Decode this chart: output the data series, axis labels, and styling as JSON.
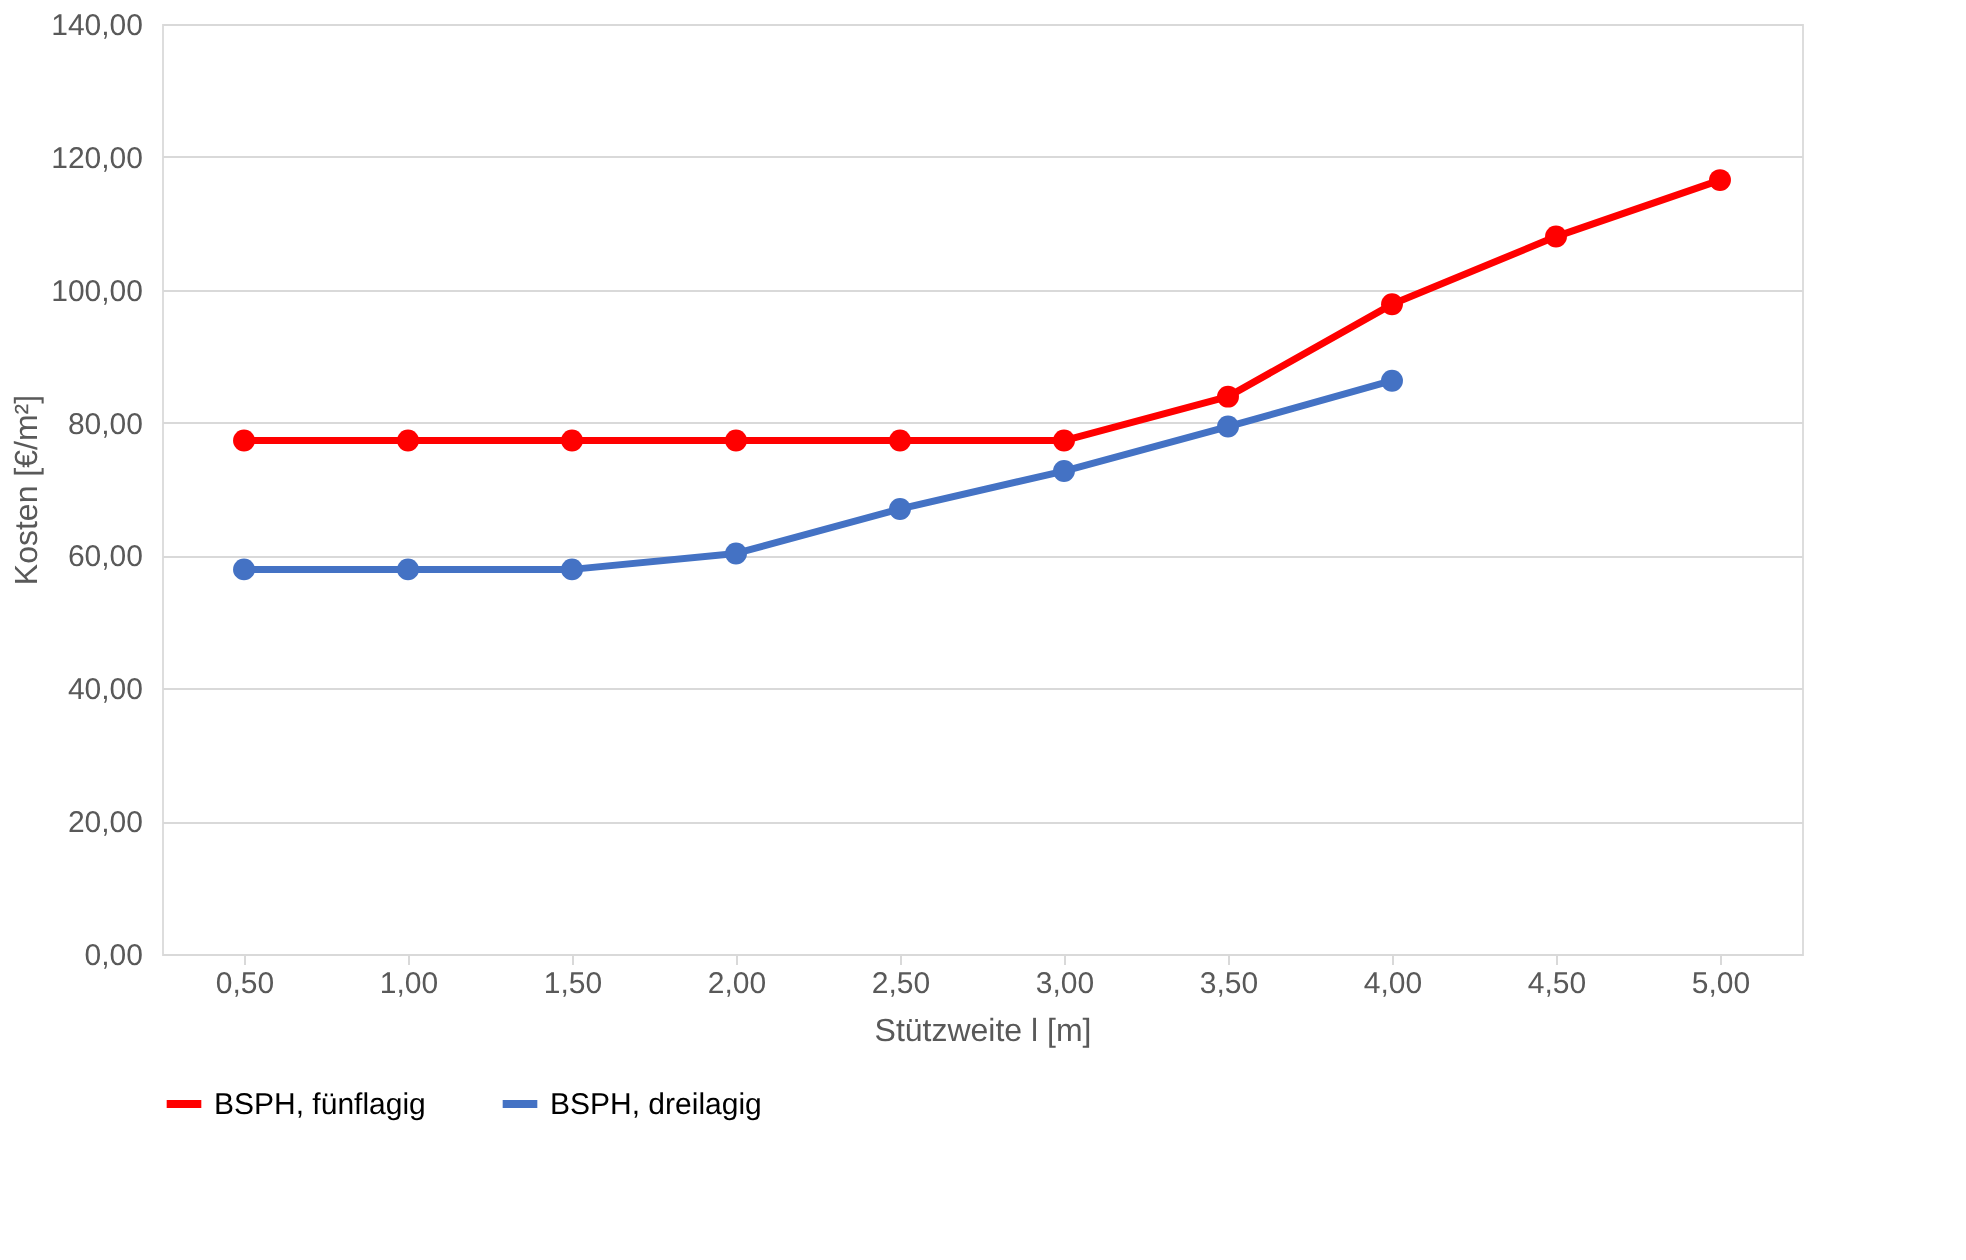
{
  "chart_data": {
    "type": "line",
    "xlabel": "Stützweite l [m]",
    "ylabel": "Kosten [€/m²]",
    "categories": [
      "0,50",
      "1,00",
      "1,50",
      "2,00",
      "2,50",
      "3,00",
      "3,50",
      "4,00",
      "4,50",
      "5,00"
    ],
    "series": [
      {
        "name": "BSPH, fünflagig",
        "color": "#ff0000",
        "values": [
          77.3,
          77.3,
          77.3,
          77.3,
          77.3,
          77.3,
          83.9,
          97.8,
          108.0,
          116.5
        ]
      },
      {
        "name": "BSPH, dreilagig",
        "color": "#4472c4",
        "values": [
          57.9,
          57.9,
          57.9,
          60.3,
          67.0,
          72.7,
          79.4,
          86.3,
          null,
          null
        ]
      }
    ],
    "ylim": [
      0,
      140
    ],
    "yticks": [
      {
        "value": 0,
        "label": "0,00"
      },
      {
        "value": 20,
        "label": "20,00"
      },
      {
        "value": 40,
        "label": "40,00"
      },
      {
        "value": 60,
        "label": "60,00"
      },
      {
        "value": 80,
        "label": "80,00"
      },
      {
        "value": 100,
        "label": "100,00"
      },
      {
        "value": 120,
        "label": "120,00"
      },
      {
        "value": 140,
        "label": "140,00"
      }
    ],
    "grid": "y",
    "legend": "bottom",
    "marker": "circle",
    "line_style": "solid"
  }
}
